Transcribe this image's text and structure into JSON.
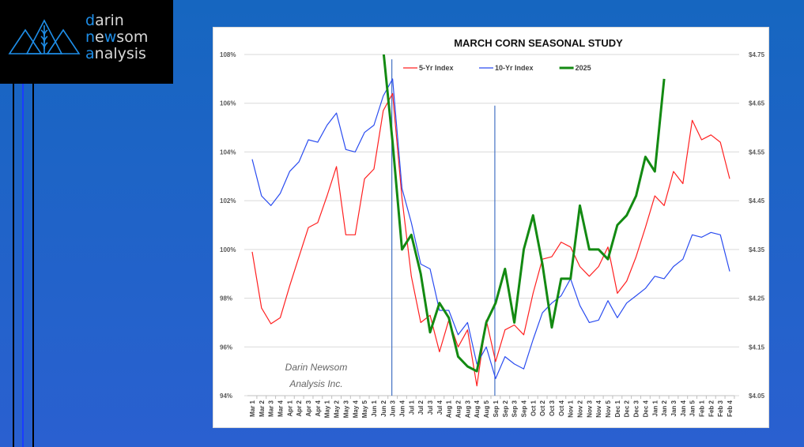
{
  "brand": {
    "line1": {
      "first": "d",
      "rest": "arin"
    },
    "line2": {
      "first": "n",
      "mid_plain": "e",
      "mid_hl": "w",
      "rest": "som"
    },
    "line3": {
      "first": "a",
      "rest": "nalysis"
    },
    "accent_color": "#1e8ee8"
  },
  "watermark": {
    "line1": "Darin Newsom",
    "line2": "Analysis Inc."
  },
  "chart_data": {
    "type": "line",
    "title": "MARCH CORN SEASONAL STUDY",
    "xlabel": "",
    "ylabel": "",
    "y_left": {
      "min": 94,
      "max": 108,
      "step": 2,
      "format": "pct",
      "ticks": [
        "94%",
        "96%",
        "98%",
        "100%",
        "102%",
        "104%",
        "106%",
        "108%"
      ]
    },
    "y_right": {
      "min": 4.05,
      "max": 4.75,
      "step": 0.1,
      "format": "usd",
      "ticks": [
        "$4.05",
        "$4.15",
        "$4.25",
        "$4.35",
        "$4.45",
        "$4.55",
        "$4.65",
        "$4.75"
      ]
    },
    "grid": true,
    "legend_position": "top-center",
    "categories": [
      "Mar 1",
      "Mar 2",
      "Mar 3",
      "Mar 4",
      "Apr 1",
      "Apr 2",
      "Apr 3",
      "Apr 4",
      "May 1",
      "May 2",
      "May 3",
      "May 4",
      "May 5",
      "Jun 1",
      "Jun 2",
      "Jun 3",
      "Jun 4",
      "Jul 1",
      "Jul 2",
      "Jul 3",
      "Jul 4",
      "Aug 1",
      "Aug 2",
      "Aug 3",
      "Aug 4",
      "Aug 5",
      "Sep 1",
      "Sep 2",
      "Sep 3",
      "Sep 4",
      "Oct 1",
      "Oct 2",
      "Oct 3",
      "Oct 4",
      "Nov 1",
      "Nov 2",
      "Nov 3",
      "Nov 4",
      "Nov 5",
      "Dec 1",
      "Dec 2",
      "Dec 3",
      "Dec 4",
      "Jan 1",
      "Jan 2",
      "Jan 3",
      "Jan 4",
      "Jan 5",
      "Feb 1",
      "Feb 2",
      "Feb 3",
      "Feb 4"
    ],
    "series": [
      {
        "name": "5-Yr Index",
        "axis": "left",
        "color": "#ff2020",
        "values": [
          99.9,
          97.6,
          96.95,
          97.2,
          98.5,
          99.7,
          100.9,
          101.1,
          102.2,
          103.4,
          100.6,
          100.6,
          102.9,
          103.3,
          105.7,
          106.4,
          102.1,
          98.9,
          97.0,
          97.3,
          95.8,
          97.1,
          96.0,
          96.7,
          94.4,
          97.1,
          95.4,
          96.7,
          96.9,
          96.5,
          98.2,
          99.6,
          99.7,
          100.3,
          100.1,
          99.3,
          98.9,
          99.3,
          100.1,
          98.2,
          98.7,
          99.7,
          100.9,
          102.2,
          101.8,
          103.2,
          102.7,
          105.3,
          104.5,
          104.7,
          104.4,
          102.9
        ]
      },
      {
        "name": "10-Yr Index",
        "axis": "left",
        "color": "#2a4cf0",
        "values": [
          103.7,
          102.2,
          101.8,
          102.3,
          103.2,
          103.6,
          104.5,
          104.4,
          105.1,
          105.6,
          104.1,
          104.0,
          104.8,
          105.1,
          106.3,
          107.0,
          102.5,
          101.1,
          99.4,
          99.2,
          97.5,
          97.5,
          96.5,
          97.0,
          95.3,
          96.0,
          94.7,
          95.6,
          95.3,
          95.1,
          96.3,
          97.4,
          97.8,
          98.1,
          98.8,
          97.7,
          97.0,
          97.1,
          97.9,
          97.2,
          97.8,
          98.1,
          98.4,
          98.9,
          98.8,
          99.3,
          99.6,
          100.6,
          100.5,
          100.7,
          100.6,
          99.1
        ]
      },
      {
        "name": "2025",
        "axis": "right",
        "color": "#138a12",
        "values": [
          null,
          null,
          null,
          null,
          null,
          null,
          null,
          null,
          null,
          null,
          null,
          null,
          null,
          null,
          4.76,
          4.57,
          4.35,
          4.38,
          4.3,
          4.18,
          4.24,
          4.21,
          4.13,
          4.11,
          4.1,
          4.2,
          4.24,
          4.31,
          4.2,
          4.35,
          4.42,
          4.32,
          4.19,
          4.29,
          4.29,
          4.44,
          4.35,
          4.35,
          4.33,
          4.4,
          4.42,
          4.46,
          4.54,
          4.51,
          4.7,
          null,
          null,
          null,
          null,
          null,
          null,
          null
        ]
      }
    ],
    "markers": [
      {
        "category": "Jun 3",
        "from_pct": 107.8,
        "to_pct": 94
      },
      {
        "category": "Sep 1",
        "from_pct": 105.9,
        "to_pct": 94
      }
    ]
  }
}
